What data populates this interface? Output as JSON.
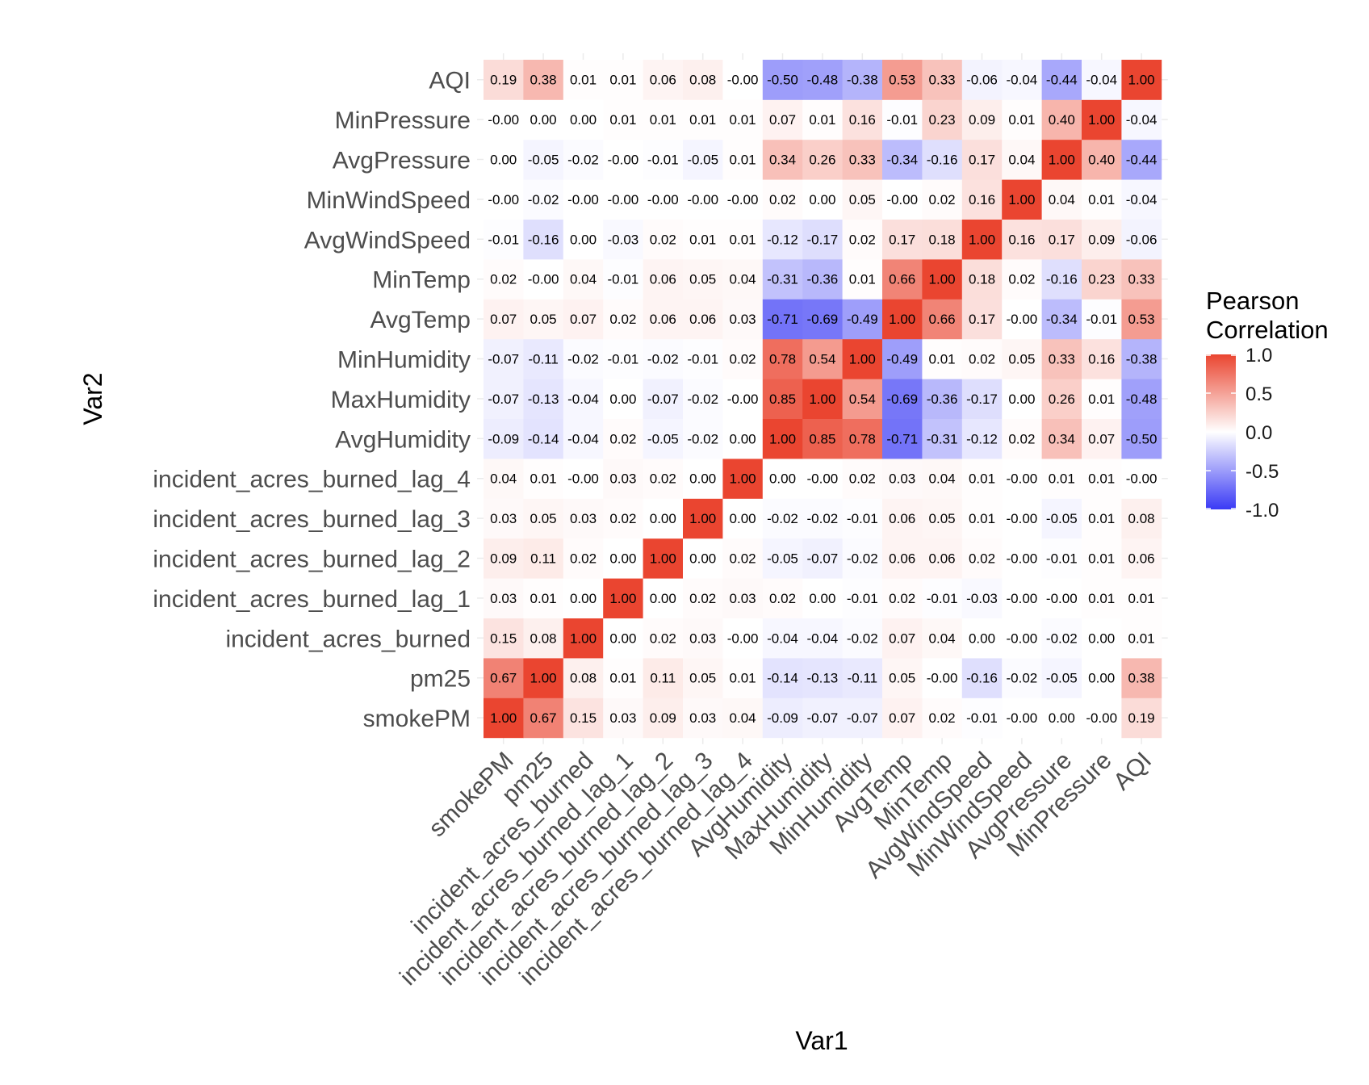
{
  "chart_data": {
    "type": "heatmap",
    "xlabel": "Var1",
    "ylabel": "Var2",
    "variables": [
      "smokePM",
      "pm25",
      "incident_acres_burned",
      "incident_acres_burned_lag_1",
      "incident_acres_burned_lag_2",
      "incident_acres_burned_lag_3",
      "incident_acres_burned_lag_4",
      "AvgHumidity",
      "MaxHumidity",
      "MinHumidity",
      "AvgTemp",
      "MinTemp",
      "AvgWindSpeed",
      "MinWindSpeed",
      "AvgPressure",
      "MinPressure",
      "AQI"
    ],
    "value_labels": [
      [
        "1.00",
        "0.67",
        "0.15",
        "0.03",
        "0.09",
        "0.03",
        "0.04",
        "-0.09",
        "-0.07",
        "-0.07",
        "0.07",
        "0.02",
        "-0.01",
        "-0.00",
        "0.00",
        "-0.00",
        "0.19"
      ],
      [
        "0.67",
        "1.00",
        "0.08",
        "0.01",
        "0.11",
        "0.05",
        "0.01",
        "-0.14",
        "-0.13",
        "-0.11",
        "0.05",
        "-0.00",
        "-0.16",
        "-0.02",
        "-0.05",
        "0.00",
        "0.38"
      ],
      [
        "0.15",
        "0.08",
        "1.00",
        "0.00",
        "0.02",
        "0.03",
        "-0.00",
        "-0.04",
        "-0.04",
        "-0.02",
        "0.07",
        "0.04",
        "0.00",
        "-0.00",
        "-0.02",
        "0.00",
        "0.01"
      ],
      [
        "0.03",
        "0.01",
        "0.00",
        "1.00",
        "0.00",
        "0.02",
        "0.03",
        "0.02",
        "0.00",
        "-0.01",
        "0.02",
        "-0.01",
        "-0.03",
        "-0.00",
        "-0.00",
        "0.01",
        "0.01"
      ],
      [
        "0.09",
        "0.11",
        "0.02",
        "0.00",
        "1.00",
        "0.00",
        "0.02",
        "-0.05",
        "-0.07",
        "-0.02",
        "0.06",
        "0.06",
        "0.02",
        "-0.00",
        "-0.01",
        "0.01",
        "0.06"
      ],
      [
        "0.03",
        "0.05",
        "0.03",
        "0.02",
        "0.00",
        "1.00",
        "0.00",
        "-0.02",
        "-0.02",
        "-0.01",
        "0.06",
        "0.05",
        "0.01",
        "-0.00",
        "-0.05",
        "0.01",
        "0.08"
      ],
      [
        "0.04",
        "0.01",
        "-0.00",
        "0.03",
        "0.02",
        "0.00",
        "1.00",
        "0.00",
        "-0.00",
        "0.02",
        "0.03",
        "0.04",
        "0.01",
        "-0.00",
        "0.01",
        "0.01",
        "-0.00"
      ],
      [
        "-0.09",
        "-0.14",
        "-0.04",
        "0.02",
        "-0.05",
        "-0.02",
        "0.00",
        "1.00",
        "0.85",
        "0.78",
        "-0.71",
        "-0.31",
        "-0.12",
        "0.02",
        "0.34",
        "0.07",
        "-0.50"
      ],
      [
        "-0.07",
        "-0.13",
        "-0.04",
        "0.00",
        "-0.07",
        "-0.02",
        "-0.00",
        "0.85",
        "1.00",
        "0.54",
        "-0.69",
        "-0.36",
        "-0.17",
        "0.00",
        "0.26",
        "0.01",
        "-0.48"
      ],
      [
        "-0.07",
        "-0.11",
        "-0.02",
        "-0.01",
        "-0.02",
        "-0.01",
        "0.02",
        "0.78",
        "0.54",
        "1.00",
        "-0.49",
        "0.01",
        "0.02",
        "0.05",
        "0.33",
        "0.16",
        "-0.38"
      ],
      [
        "0.07",
        "0.05",
        "0.07",
        "0.02",
        "0.06",
        "0.06",
        "0.03",
        "-0.71",
        "-0.69",
        "-0.49",
        "1.00",
        "0.66",
        "0.17",
        "-0.00",
        "-0.34",
        "-0.01",
        "0.53"
      ],
      [
        "0.02",
        "-0.00",
        "0.04",
        "-0.01",
        "0.06",
        "0.05",
        "0.04",
        "-0.31",
        "-0.36",
        "0.01",
        "0.66",
        "1.00",
        "0.18",
        "0.02",
        "-0.16",
        "0.23",
        "0.33"
      ],
      [
        "-0.01",
        "-0.16",
        "0.00",
        "-0.03",
        "0.02",
        "0.01",
        "0.01",
        "-0.12",
        "-0.17",
        "0.02",
        "0.17",
        "0.18",
        "1.00",
        "0.16",
        "0.17",
        "0.09",
        "-0.06"
      ],
      [
        "-0.00",
        "-0.02",
        "-0.00",
        "-0.00",
        "-0.00",
        "-0.00",
        "-0.00",
        "0.02",
        "0.00",
        "0.05",
        "-0.00",
        "0.02",
        "0.16",
        "1.00",
        "0.04",
        "0.01",
        "-0.04"
      ],
      [
        "0.00",
        "-0.05",
        "-0.02",
        "-0.00",
        "-0.01",
        "-0.05",
        "0.01",
        "0.34",
        "0.26",
        "0.33",
        "-0.34",
        "-0.16",
        "0.17",
        "0.04",
        "1.00",
        "0.40",
        "-0.44"
      ],
      [
        "-0.00",
        "0.00",
        "0.00",
        "0.01",
        "0.01",
        "0.01",
        "0.01",
        "0.07",
        "0.01",
        "0.16",
        "-0.01",
        "0.23",
        "0.09",
        "0.01",
        "0.40",
        "1.00",
        "-0.04"
      ],
      [
        "0.19",
        "0.38",
        "0.01",
        "0.01",
        "0.06",
        "0.08",
        "-0.00",
        "-0.50",
        "-0.48",
        "-0.38",
        "0.53",
        "0.33",
        "-0.06",
        "-0.04",
        "-0.44",
        "-0.04",
        "1.00"
      ]
    ],
    "legend": {
      "title_lines": [
        "Pearson",
        "Correlation"
      ],
      "ticks": [
        1.0,
        0.5,
        0.0,
        -0.5,
        -1.0
      ],
      "tick_labels": [
        "1.0",
        "0.5",
        "0.0",
        "-0.5",
        "-1.0"
      ],
      "range": [
        -1,
        1
      ],
      "placement": "right"
    },
    "colors": {
      "low": "#3a3af5",
      "mid": "#ffffff",
      "high": "#ea4530"
    }
  }
}
